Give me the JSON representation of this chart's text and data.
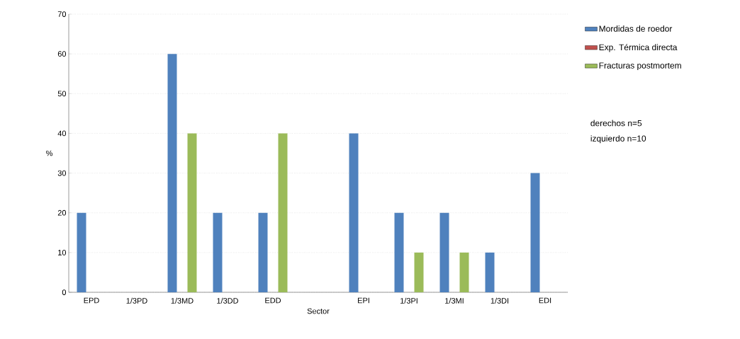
{
  "chart_data": {
    "type": "bar",
    "xlabel": "Sector",
    "ylabel": "%",
    "categories": [
      "EPD",
      "1/3PD",
      "1/3MD",
      "1/3DD",
      "EDD",
      null,
      "EPI",
      "1/3PI",
      "1/3MI",
      "1/3DI",
      "EDI"
    ],
    "series": [
      {
        "name": "Mordidas de roedor",
        "color": "#4f81bd",
        "values": [
          20,
          null,
          60,
          20,
          20,
          null,
          40,
          20,
          20,
          10,
          30
        ]
      },
      {
        "name": "Exp. Térmica directa",
        "color": "#c0504d",
        "values": [
          null,
          null,
          null,
          null,
          null,
          null,
          null,
          null,
          null,
          null,
          null
        ]
      },
      {
        "name": "Fracturas postmortem",
        "color": "#9bbb59",
        "values": [
          null,
          null,
          40,
          null,
          40,
          null,
          null,
          10,
          10,
          null,
          null
        ]
      }
    ],
    "ylim": [
      0,
      70
    ],
    "yticks": [
      0,
      10,
      20,
      30,
      40,
      50,
      60,
      70
    ],
    "grid": "y",
    "legend": "right",
    "annotations": [
      "derechos  n=5",
      "izquierdo n=10"
    ]
  }
}
